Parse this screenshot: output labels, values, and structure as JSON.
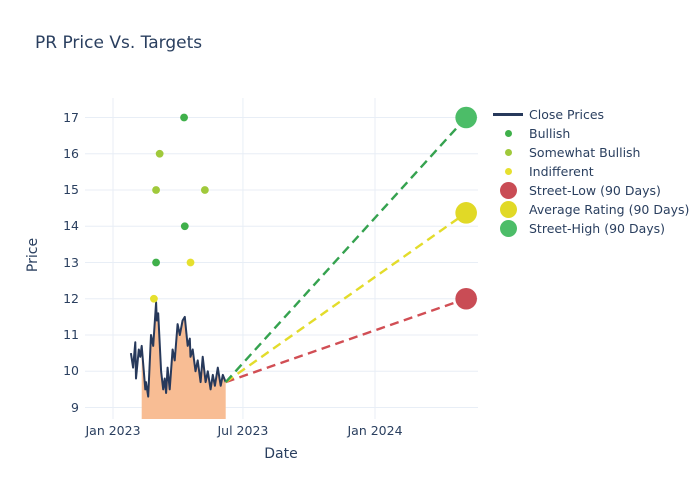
{
  "title": "PR Price Vs. Targets",
  "colors": {
    "background": "#ffffff",
    "text": "#2a3f5f",
    "gridline": "#e8eef6",
    "close_line": "#27395b",
    "close_fill": "#f8bd94",
    "bullish": "#3fb04a",
    "somewhat_bullish": "#a0c93b",
    "indifferent": "#e6e02e",
    "street_low": "#c94c55",
    "average_rating": "#e1d926",
    "street_high": "#4cbd68",
    "street_low_dash": "#d14e54",
    "average_dash": "#e3dc2b",
    "street_high_dash": "#35a24f"
  },
  "legend": {
    "items": [
      {
        "label": "Close Prices",
        "marker": "line",
        "color": "#27395b"
      },
      {
        "label": "Bullish",
        "marker": "dot",
        "color": "#3fb04a"
      },
      {
        "label": "Somewhat Bullish",
        "marker": "dot",
        "color": "#a0c93b"
      },
      {
        "label": "Indifferent",
        "marker": "dot",
        "color": "#e6e02e"
      },
      {
        "label": "Street-Low (90 Days)",
        "marker": "big-dot",
        "color": "#c94c55"
      },
      {
        "label": "Average Rating (90 Days)",
        "marker": "big-dot",
        "color": "#e1d926"
      },
      {
        "label": "Street-High (90 Days)",
        "marker": "big-dot",
        "color": "#4cbd68"
      }
    ]
  },
  "chart_data": {
    "type": "line",
    "title": "PR Price Vs. Targets",
    "xlabel": "Date",
    "ylabel": "Price",
    "grid": true,
    "legend_position": "right",
    "y_ticks": [
      9,
      10,
      11,
      12,
      13,
      14,
      15,
      16,
      17
    ],
    "x_ticks": [
      {
        "date": "2023-01-01",
        "label": "Jan 2023"
      },
      {
        "date": "2023-07-01",
        "label": "Jul 2023"
      },
      {
        "date": "2024-01-01",
        "label": "Jan 2024"
      }
    ],
    "y_range": [
      8.7,
      17.55
    ],
    "x_range": [
      "2022-12-22",
      "2024-06-22"
    ],
    "series": [
      {
        "name": "Close Prices",
        "type": "area-line",
        "color": "#27395b",
        "fill_color": "#f8bd94",
        "fill_from_date": "2023-02-10",
        "dates": [
          "2023-01-26",
          "2023-01-29",
          "2023-02-01",
          "2023-02-02",
          "2023-02-06",
          "2023-02-08",
          "2023-02-10",
          "2023-02-15",
          "2023-02-16",
          "2023-02-19",
          "2023-02-23",
          "2023-02-26",
          "2023-03-02",
          "2023-03-03",
          "2023-03-05",
          "2023-03-09",
          "2023-03-12",
          "2023-03-14",
          "2023-03-16",
          "2023-03-18",
          "2023-03-21",
          "2023-03-25",
          "2023-03-28",
          "2023-04-01",
          "2023-04-04",
          "2023-04-08",
          "2023-04-11",
          "2023-04-13",
          "2023-04-15",
          "2023-04-18",
          "2023-04-19",
          "2023-04-22",
          "2023-04-26",
          "2023-04-29",
          "2023-05-03",
          "2023-05-06",
          "2023-05-10",
          "2023-05-13",
          "2023-05-17",
          "2023-05-20",
          "2023-05-23",
          "2023-05-27",
          "2023-05-31",
          "2023-06-03",
          "2023-06-07"
        ],
        "values": [
          10.5,
          10.1,
          10.8,
          9.8,
          10.6,
          10.4,
          10.7,
          9.5,
          9.7,
          9.3,
          11.0,
          10.7,
          11.9,
          11.4,
          11.6,
          10.0,
          9.5,
          9.8,
          9.4,
          10.1,
          9.5,
          10.6,
          10.3,
          11.3,
          11.0,
          11.4,
          11.5,
          11.1,
          10.7,
          10.9,
          10.4,
          10.6,
          10.0,
          10.3,
          9.7,
          10.4,
          9.7,
          10.0,
          9.5,
          9.9,
          9.6,
          10.1,
          9.6,
          9.9,
          9.7
        ]
      },
      {
        "name": "Bullish",
        "type": "scatter",
        "color": "#3fb04a",
        "dates": [
          "2023-03-02",
          "2023-04-10",
          "2023-04-11"
        ],
        "values": [
          13,
          17,
          14
        ]
      },
      {
        "name": "Somewhat Bullish",
        "type": "scatter",
        "color": "#a0c93b",
        "dates": [
          "2023-03-02",
          "2023-03-07",
          "2023-05-09"
        ],
        "values": [
          15,
          16,
          15
        ]
      },
      {
        "name": "Indifferent",
        "type": "scatter",
        "color": "#e6e02e",
        "dates": [
          "2023-02-27",
          "2023-04-19"
        ],
        "values": [
          12,
          13
        ]
      },
      {
        "name": "Street-Low (90 Days)",
        "type": "target",
        "line_color": "#d14e54",
        "marker_color": "#c94c55",
        "start": {
          "date": "2023-06-07",
          "value": 9.7
        },
        "end": {
          "date": "2024-05-07",
          "value": 12.0
        }
      },
      {
        "name": "Average Rating (90 Days)",
        "type": "target",
        "line_color": "#e3dc2b",
        "marker_color": "#e1d926",
        "start": {
          "date": "2023-06-07",
          "value": 9.7
        },
        "end": {
          "date": "2024-05-07",
          "value": 14.37
        }
      },
      {
        "name": "Street-High (90 Days)",
        "type": "target",
        "line_color": "#35a24f",
        "marker_color": "#4cbd68",
        "start": {
          "date": "2023-06-07",
          "value": 9.7
        },
        "end": {
          "date": "2024-05-07",
          "value": 17.0
        }
      }
    ]
  }
}
